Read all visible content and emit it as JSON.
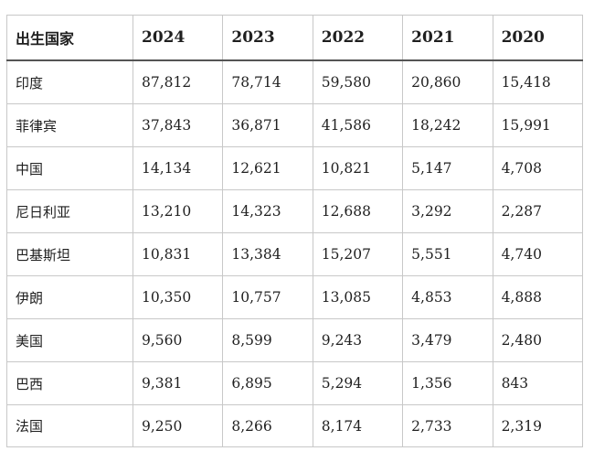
{
  "table": {
    "columns": [
      "出生国家",
      "2024",
      "2023",
      "2022",
      "2021",
      "2020"
    ],
    "rows": [
      {
        "country": "印度",
        "values": [
          "87,812",
          "78,714",
          "59,580",
          "20,860",
          "15,418"
        ]
      },
      {
        "country": "菲律宾",
        "values": [
          "37,843",
          "36,871",
          "41,586",
          "18,242",
          "15,991"
        ]
      },
      {
        "country": "中国",
        "values": [
          "14,134",
          "12,621",
          "10,821",
          "5,147",
          "4,708"
        ]
      },
      {
        "country": "尼日利亚",
        "values": [
          "13,210",
          "14,323",
          "12,688",
          "3,292",
          "2,287"
        ]
      },
      {
        "country": "巴基斯坦",
        "values": [
          "10,831",
          "13,384",
          "15,207",
          "5,551",
          "4,740"
        ]
      },
      {
        "country": "伊朗",
        "values": [
          "10,350",
          "10,757",
          "13,085",
          "4,853",
          "4,888"
        ]
      },
      {
        "country": "美国",
        "values": [
          "9,560",
          "8,599",
          "9,243",
          "3,479",
          "2,480"
        ]
      },
      {
        "country": "巴西",
        "values": [
          "9,381",
          "6,895",
          "5,294",
          "1,356",
          "843"
        ]
      },
      {
        "country": "法国",
        "values": [
          "9,250",
          "8,266",
          "8,174",
          "2,733",
          "2,319"
        ]
      }
    ]
  },
  "chart_data": {
    "type": "table",
    "columns": [
      "出生国家",
      "2024",
      "2023",
      "2022",
      "2021",
      "2020"
    ],
    "categories": [
      "印度",
      "菲律宾",
      "中国",
      "尼日利亚",
      "巴基斯坦",
      "伊朗",
      "美国",
      "巴西",
      "法国"
    ],
    "series": [
      {
        "name": "2024",
        "values": [
          87812,
          37843,
          14134,
          13210,
          10831,
          10350,
          9560,
          9381,
          9250
        ]
      },
      {
        "name": "2023",
        "values": [
          78714,
          36871,
          12621,
          14323,
          13384,
          10757,
          8599,
          6895,
          8266
        ]
      },
      {
        "name": "2022",
        "values": [
          59580,
          41586,
          10821,
          12688,
          15207,
          13085,
          9243,
          5294,
          8174
        ]
      },
      {
        "name": "2021",
        "values": [
          20860,
          18242,
          5147,
          3292,
          5551,
          4853,
          3479,
          1356,
          2733
        ]
      },
      {
        "name": "2020",
        "values": [
          15418,
          15991,
          4708,
          2287,
          4740,
          4888,
          2480,
          843,
          2319
        ]
      }
    ]
  }
}
